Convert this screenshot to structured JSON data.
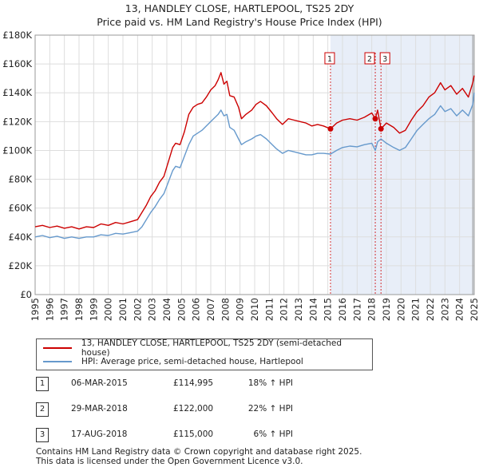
{
  "title": {
    "line1": "13, HANDLEY CLOSE, HARTLEPOOL, TS25 2DY",
    "line2": "Price paid vs. HM Land Registry's House Price Index (HPI)"
  },
  "colors": {
    "price_line": "#cc0000",
    "hpi_line": "#6699cc",
    "shade": "#e8eef8",
    "grid": "#dddddd"
  },
  "legend": {
    "price_label": "13, HANDLEY CLOSE, HARTLEPOOL, TS25 2DY (semi-detached house)",
    "hpi_label": "HPI: Average price, semi-detached house, Hartlepool"
  },
  "sales": [
    {
      "num": "1",
      "date": "06-MAR-2015",
      "price": "£114,995",
      "hpi": "18% ↑ HPI"
    },
    {
      "num": "2",
      "date": "29-MAR-2018",
      "price": "£122,000",
      "hpi": "22% ↑ HPI"
    },
    {
      "num": "3",
      "date": "17-AUG-2018",
      "price": "£115,000",
      "hpi": "6% ↑ HPI"
    }
  ],
  "footer": {
    "line1": "Contains HM Land Registry data © Crown copyright and database right 2025.",
    "line2": "This data is licensed under the Open Government Licence v3.0."
  },
  "chart_data": {
    "type": "line",
    "title": "13, HANDLEY CLOSE, HARTLEPOOL, TS25 2DY — Price paid vs. HM Land Registry's House Price Index (HPI)",
    "xlabel": "",
    "ylabel": "",
    "xlim": [
      1995,
      2025
    ],
    "ylim": [
      0,
      180000
    ],
    "y_ticks": [
      0,
      20000,
      40000,
      60000,
      80000,
      100000,
      120000,
      140000,
      160000,
      180000
    ],
    "y_tick_labels": [
      "£0",
      "£20K",
      "£40K",
      "£60K",
      "£80K",
      "£100K",
      "£120K",
      "£140K",
      "£160K",
      "£180K"
    ],
    "x_ticks": [
      1995,
      1996,
      1997,
      1998,
      1999,
      2000,
      2001,
      2002,
      2003,
      2004,
      2005,
      2006,
      2007,
      2008,
      2009,
      2010,
      2011,
      2012,
      2013,
      2014,
      2015,
      2016,
      2017,
      2018,
      2019,
      2020,
      2021,
      2022,
      2023,
      2024,
      2025
    ],
    "shaded_from": 2015.18,
    "grid": true,
    "markers": [
      {
        "label": "1",
        "x": 2015.18,
        "y": 114995
      },
      {
        "label": "2",
        "x": 2018.24,
        "y": 122000
      },
      {
        "label": "3",
        "x": 2018.63,
        "y": 115000
      }
    ],
    "series": [
      {
        "name": "13, HANDLEY CLOSE, HARTLEPOOL, TS25 2DY (semi-detached house)",
        "color": "#cc0000",
        "points": [
          [
            1995.0,
            47000
          ],
          [
            1995.5,
            48000
          ],
          [
            1996.0,
            46500
          ],
          [
            1996.5,
            47500
          ],
          [
            1997.0,
            46000
          ],
          [
            1997.5,
            47000
          ],
          [
            1998.0,
            45500
          ],
          [
            1998.5,
            47000
          ],
          [
            1999.0,
            46500
          ],
          [
            1999.5,
            49000
          ],
          [
            2000.0,
            48000
          ],
          [
            2000.5,
            50000
          ],
          [
            2001.0,
            49000
          ],
          [
            2001.5,
            50500
          ],
          [
            2002.0,
            52000
          ],
          [
            2002.3,
            57000
          ],
          [
            2002.6,
            62000
          ],
          [
            2002.9,
            68000
          ],
          [
            2003.2,
            72000
          ],
          [
            2003.5,
            78000
          ],
          [
            2003.8,
            82000
          ],
          [
            2004.1,
            92000
          ],
          [
            2004.4,
            102000
          ],
          [
            2004.6,
            105000
          ],
          [
            2004.9,
            104000
          ],
          [
            2005.2,
            113000
          ],
          [
            2005.5,
            125000
          ],
          [
            2005.8,
            130000
          ],
          [
            2006.1,
            132000
          ],
          [
            2006.4,
            133000
          ],
          [
            2006.7,
            137000
          ],
          [
            2007.0,
            142000
          ],
          [
            2007.3,
            145000
          ],
          [
            2007.5,
            149000
          ],
          [
            2007.7,
            154000
          ],
          [
            2007.9,
            146000
          ],
          [
            2008.1,
            148000
          ],
          [
            2008.3,
            138000
          ],
          [
            2008.6,
            137000
          ],
          [
            2008.9,
            130000
          ],
          [
            2009.1,
            122000
          ],
          [
            2009.4,
            125000
          ],
          [
            2009.8,
            128000
          ],
          [
            2010.1,
            132000
          ],
          [
            2010.4,
            134000
          ],
          [
            2010.8,
            131000
          ],
          [
            2011.2,
            126000
          ],
          [
            2011.5,
            122000
          ],
          [
            2011.9,
            118000
          ],
          [
            2012.3,
            122000
          ],
          [
            2012.7,
            121000
          ],
          [
            2013.1,
            120000
          ],
          [
            2013.5,
            119000
          ],
          [
            2013.9,
            117000
          ],
          [
            2014.3,
            118000
          ],
          [
            2014.7,
            117000
          ],
          [
            2015.18,
            114995
          ],
          [
            2015.6,
            119000
          ],
          [
            2016.0,
            121000
          ],
          [
            2016.5,
            122000
          ],
          [
            2017.0,
            121000
          ],
          [
            2017.5,
            123000
          ],
          [
            2018.0,
            126000
          ],
          [
            2018.24,
            122000
          ],
          [
            2018.4,
            128000
          ],
          [
            2018.63,
            115000
          ],
          [
            2019.0,
            119000
          ],
          [
            2019.5,
            116000
          ],
          [
            2019.9,
            112000
          ],
          [
            2020.3,
            114000
          ],
          [
            2020.7,
            121000
          ],
          [
            2021.1,
            127000
          ],
          [
            2021.5,
            131000
          ],
          [
            2021.9,
            137000
          ],
          [
            2022.3,
            140000
          ],
          [
            2022.7,
            147000
          ],
          [
            2023.0,
            142000
          ],
          [
            2023.4,
            145000
          ],
          [
            2023.8,
            139000
          ],
          [
            2024.2,
            143000
          ],
          [
            2024.6,
            137000
          ],
          [
            2024.9,
            147000
          ],
          [
            2025.0,
            152000
          ]
        ]
      },
      {
        "name": "HPI: Average price, semi-detached house, Hartlepool",
        "color": "#6699cc",
        "points": [
          [
            1995.0,
            40000
          ],
          [
            1995.5,
            41000
          ],
          [
            1996.0,
            39500
          ],
          [
            1996.5,
            40500
          ],
          [
            1997.0,
            39000
          ],
          [
            1997.5,
            40000
          ],
          [
            1998.0,
            39000
          ],
          [
            1998.5,
            40000
          ],
          [
            1999.0,
            40000
          ],
          [
            1999.5,
            41500
          ],
          [
            2000.0,
            41000
          ],
          [
            2000.5,
            42500
          ],
          [
            2001.0,
            42000
          ],
          [
            2001.5,
            43000
          ],
          [
            2002.0,
            44000
          ],
          [
            2002.3,
            47000
          ],
          [
            2002.6,
            52000
          ],
          [
            2002.9,
            57000
          ],
          [
            2003.2,
            61000
          ],
          [
            2003.5,
            66000
          ],
          [
            2003.8,
            70000
          ],
          [
            2004.1,
            78000
          ],
          [
            2004.4,
            86000
          ],
          [
            2004.6,
            89000
          ],
          [
            2004.9,
            88000
          ],
          [
            2005.2,
            96000
          ],
          [
            2005.5,
            104000
          ],
          [
            2005.8,
            110000
          ],
          [
            2006.1,
            112000
          ],
          [
            2006.4,
            114000
          ],
          [
            2006.7,
            117000
          ],
          [
            2007.0,
            120000
          ],
          [
            2007.3,
            123000
          ],
          [
            2007.5,
            125000
          ],
          [
            2007.7,
            128000
          ],
          [
            2007.9,
            124000
          ],
          [
            2008.1,
            125000
          ],
          [
            2008.3,
            116000
          ],
          [
            2008.6,
            114000
          ],
          [
            2008.9,
            108000
          ],
          [
            2009.1,
            104000
          ],
          [
            2009.4,
            106000
          ],
          [
            2009.8,
            108000
          ],
          [
            2010.1,
            110000
          ],
          [
            2010.4,
            111000
          ],
          [
            2010.8,
            108000
          ],
          [
            2011.2,
            104000
          ],
          [
            2011.5,
            101000
          ],
          [
            2011.9,
            98000
          ],
          [
            2012.3,
            100000
          ],
          [
            2012.7,
            99000
          ],
          [
            2013.1,
            98000
          ],
          [
            2013.5,
            97000
          ],
          [
            2013.9,
            97000
          ],
          [
            2014.3,
            98000
          ],
          [
            2014.7,
            98000
          ],
          [
            2015.18,
            97500
          ],
          [
            2015.6,
            100000
          ],
          [
            2016.0,
            102000
          ],
          [
            2016.5,
            103000
          ],
          [
            2017.0,
            102500
          ],
          [
            2017.5,
            104000
          ],
          [
            2018.0,
            105000
          ],
          [
            2018.24,
            100000
          ],
          [
            2018.4,
            106000
          ],
          [
            2018.63,
            108000
          ],
          [
            2019.0,
            105000
          ],
          [
            2019.5,
            102000
          ],
          [
            2019.9,
            100000
          ],
          [
            2020.3,
            102000
          ],
          [
            2020.7,
            108000
          ],
          [
            2021.1,
            114000
          ],
          [
            2021.5,
            118000
          ],
          [
            2021.9,
            122000
          ],
          [
            2022.3,
            125000
          ],
          [
            2022.7,
            131000
          ],
          [
            2023.0,
            127000
          ],
          [
            2023.4,
            129000
          ],
          [
            2023.8,
            124000
          ],
          [
            2024.2,
            128000
          ],
          [
            2024.6,
            124000
          ],
          [
            2024.9,
            132000
          ],
          [
            2025.0,
            140000
          ]
        ]
      }
    ]
  }
}
